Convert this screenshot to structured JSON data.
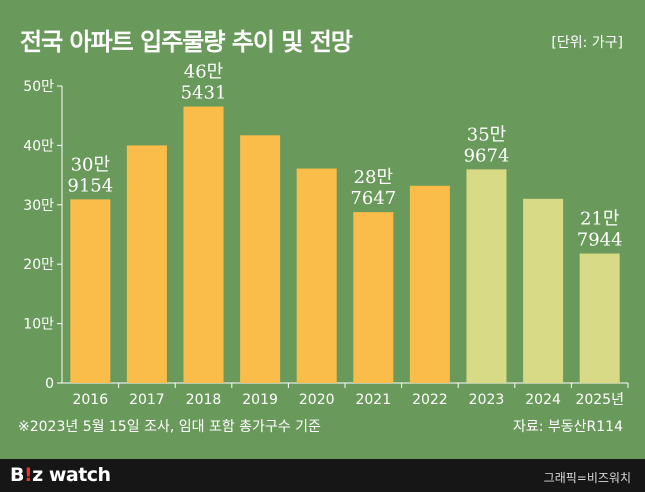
{
  "title": "전국 아파트 입주물량 추이 및 전망",
  "unit_label": "[단위: 가구]",
  "footnote": "※2023년 5월 15일 조사, 임대 포함 총가구수 기준",
  "source": "자료: 부동산R114",
  "footer": {
    "logo_b": "B",
    "logo_i": "!",
    "logo_z": "z",
    "logo_watch": " watch",
    "credit": "그래픽=비즈워치"
  },
  "colors": {
    "background": "#6a9a5b",
    "actual_bar": "#fbbd4a",
    "forecast_bar": "#d9da86",
    "label": "#ffffff",
    "axis": "#ffffff",
    "footer": "#161616"
  },
  "chart_data": {
    "type": "bar",
    "categories": [
      "2016",
      "2017",
      "2018",
      "2019",
      "2020",
      "2021",
      "2022",
      "2023",
      "2024",
      "2025년"
    ],
    "values": [
      309154,
      400000,
      465431,
      417000,
      361000,
      287647,
      332000,
      359674,
      310000,
      217944
    ],
    "forecast_from_index": 7,
    "data_labels": [
      [
        "30만",
        "9154"
      ],
      null,
      [
        "46만",
        "5431"
      ],
      null,
      null,
      [
        "28만",
        "7647"
      ],
      null,
      [
        "35만",
        "9674"
      ],
      null,
      [
        "21만",
        "7944"
      ]
    ],
    "y_ticks": [
      "0",
      "10만",
      "20만",
      "30만",
      "40만",
      "50만"
    ],
    "y_tick_values": [
      0,
      100000,
      200000,
      300000,
      400000,
      500000
    ],
    "ylim": [
      0,
      500000
    ],
    "grid": false
  }
}
